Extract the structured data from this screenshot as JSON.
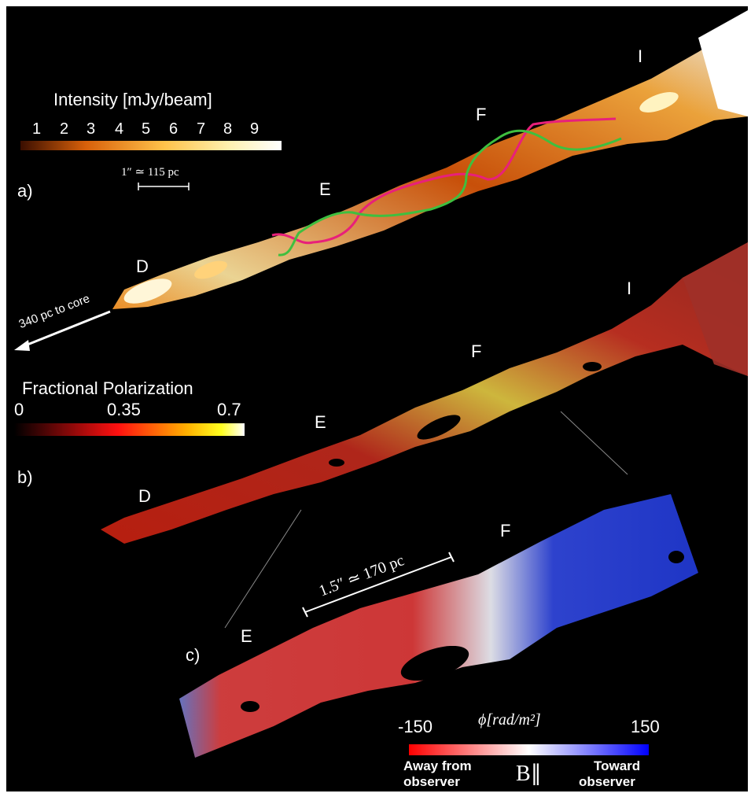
{
  "panel_a": {
    "tag": "a)",
    "colorbar_title": "Intensity [mJy/beam]",
    "ticks": [
      "1",
      "2",
      "3",
      "4",
      "5",
      "6",
      "7",
      "8",
      "9"
    ],
    "scale_bar": "1″ ≃  115 pc",
    "knots": [
      "D",
      "E",
      "F",
      "I"
    ],
    "core_arrow": "340 pc to core"
  },
  "panel_b": {
    "tag": "b)",
    "colorbar_title": "Fractional Polarization",
    "ticks": [
      "0",
      "0.35",
      "0.7"
    ],
    "knots": [
      "D",
      "E",
      "F",
      "I"
    ]
  },
  "panel_c": {
    "tag": "c)",
    "scale_bar": "1.5″ ≃ 170 pc",
    "knots": [
      "E",
      "F"
    ],
    "colorbar_label": "ϕ[rad/m²]",
    "min_tick": "-150",
    "max_tick": "150",
    "left_caption_1": "Away from",
    "left_caption_2": "observer",
    "right_caption_1": "Toward",
    "right_caption_2": "observer",
    "b_symbol": "B∥"
  },
  "colors": {
    "line_magenta": "#e8207a",
    "line_green": "#3fbf3f",
    "rm_blue": "#2b3fd6",
    "rm_red": "#d83030"
  }
}
